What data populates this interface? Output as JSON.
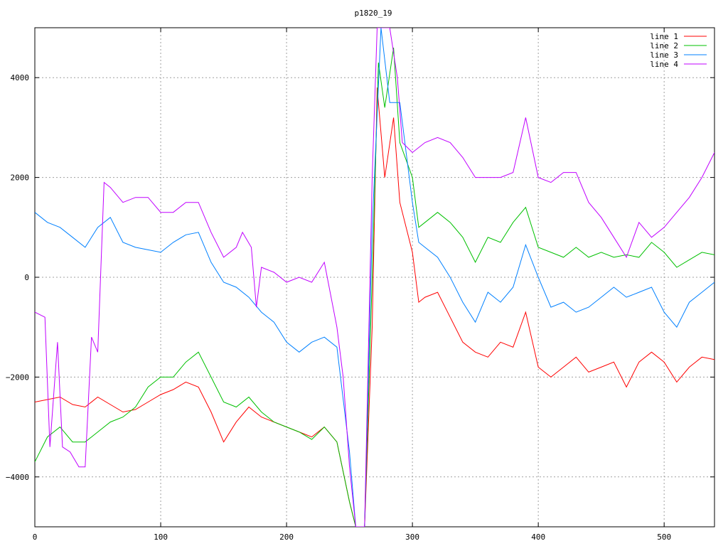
{
  "chart_data": {
    "type": "line",
    "title": "p1820_19",
    "xlabel": "",
    "ylabel": "",
    "xlim": [
      0,
      540
    ],
    "ylim": [
      -5000,
      5000
    ],
    "x_ticks": [
      0,
      100,
      200,
      300,
      400,
      500
    ],
    "y_ticks": [
      -4000,
      -2000,
      0,
      2000,
      4000
    ],
    "x_tick_labels": [
      "0",
      "100",
      "200",
      "300",
      "400",
      "500"
    ],
    "y_tick_labels": [
      "−4000",
      "−2000",
      "0",
      "2000",
      "4000"
    ],
    "grid": true,
    "legend_position": "top-right",
    "series": [
      {
        "name": "line 1",
        "color": "#ff0000",
        "points": [
          [
            0,
            -2500
          ],
          [
            10,
            -2450
          ],
          [
            20,
            -2400
          ],
          [
            30,
            -2550
          ],
          [
            40,
            -2600
          ],
          [
            50,
            -2400
          ],
          [
            60,
            -2550
          ],
          [
            70,
            -2700
          ],
          [
            80,
            -2650
          ],
          [
            90,
            -2500
          ],
          [
            100,
            -2350
          ],
          [
            110,
            -2250
          ],
          [
            120,
            -2100
          ],
          [
            130,
            -2200
          ],
          [
            140,
            -2700
          ],
          [
            150,
            -3300
          ],
          [
            160,
            -2900
          ],
          [
            170,
            -2600
          ],
          [
            180,
            -2800
          ],
          [
            190,
            -2900
          ],
          [
            200,
            -3000
          ],
          [
            210,
            -3100
          ],
          [
            220,
            -3200
          ],
          [
            230,
            -3000
          ],
          [
            240,
            -3300
          ],
          [
            250,
            -4500
          ],
          [
            255,
            -5000
          ],
          [
            262,
            -5000
          ],
          [
            268,
            -1000
          ],
          [
            272,
            3800
          ],
          [
            278,
            2000
          ],
          [
            285,
            3200
          ],
          [
            290,
            1500
          ],
          [
            300,
            500
          ],
          [
            305,
            -500
          ],
          [
            310,
            -400
          ],
          [
            320,
            -300
          ],
          [
            330,
            -800
          ],
          [
            340,
            -1300
          ],
          [
            350,
            -1500
          ],
          [
            360,
            -1600
          ],
          [
            370,
            -1300
          ],
          [
            380,
            -1400
          ],
          [
            390,
            -700
          ],
          [
            400,
            -1800
          ],
          [
            410,
            -2000
          ],
          [
            420,
            -1800
          ],
          [
            430,
            -1600
          ],
          [
            440,
            -1900
          ],
          [
            450,
            -1800
          ],
          [
            460,
            -1700
          ],
          [
            470,
            -2200
          ],
          [
            480,
            -1700
          ],
          [
            490,
            -1500
          ],
          [
            500,
            -1700
          ],
          [
            510,
            -2100
          ],
          [
            520,
            -1800
          ],
          [
            530,
            -1600
          ],
          [
            540,
            -1650
          ]
        ]
      },
      {
        "name": "line 2",
        "color": "#00c000",
        "points": [
          [
            0,
            -3700
          ],
          [
            10,
            -3200
          ],
          [
            20,
            -3000
          ],
          [
            30,
            -3300
          ],
          [
            40,
            -3300
          ],
          [
            50,
            -3100
          ],
          [
            60,
            -2900
          ],
          [
            70,
            -2800
          ],
          [
            80,
            -2600
          ],
          [
            90,
            -2200
          ],
          [
            100,
            -2000
          ],
          [
            110,
            -2000
          ],
          [
            120,
            -1700
          ],
          [
            130,
            -1500
          ],
          [
            140,
            -2000
          ],
          [
            150,
            -2500
          ],
          [
            160,
            -2600
          ],
          [
            170,
            -2400
          ],
          [
            180,
            -2700
          ],
          [
            190,
            -2900
          ],
          [
            200,
            -3000
          ],
          [
            210,
            -3100
          ],
          [
            220,
            -3250
          ],
          [
            230,
            -3000
          ],
          [
            240,
            -3300
          ],
          [
            250,
            -4500
          ],
          [
            255,
            -5000
          ],
          [
            262,
            -5000
          ],
          [
            268,
            0
          ],
          [
            273,
            4300
          ],
          [
            278,
            3400
          ],
          [
            285,
            4600
          ],
          [
            290,
            2700
          ],
          [
            300,
            2000
          ],
          [
            305,
            1000
          ],
          [
            310,
            1100
          ],
          [
            320,
            1300
          ],
          [
            330,
            1100
          ],
          [
            340,
            800
          ],
          [
            350,
            300
          ],
          [
            360,
            800
          ],
          [
            370,
            700
          ],
          [
            380,
            1100
          ],
          [
            390,
            1400
          ],
          [
            400,
            600
          ],
          [
            410,
            500
          ],
          [
            420,
            400
          ],
          [
            430,
            600
          ],
          [
            440,
            400
          ],
          [
            450,
            500
          ],
          [
            460,
            400
          ],
          [
            470,
            450
          ],
          [
            480,
            400
          ],
          [
            490,
            700
          ],
          [
            500,
            500
          ],
          [
            510,
            200
          ],
          [
            520,
            350
          ],
          [
            530,
            500
          ],
          [
            540,
            450
          ]
        ]
      },
      {
        "name": "line 3",
        "color": "#0080ff",
        "points": [
          [
            0,
            1300
          ],
          [
            10,
            1100
          ],
          [
            20,
            1000
          ],
          [
            30,
            800
          ],
          [
            40,
            600
          ],
          [
            50,
            1000
          ],
          [
            60,
            1200
          ],
          [
            70,
            700
          ],
          [
            80,
            600
          ],
          [
            90,
            550
          ],
          [
            100,
            500
          ],
          [
            110,
            700
          ],
          [
            120,
            850
          ],
          [
            130,
            900
          ],
          [
            140,
            300
          ],
          [
            150,
            -100
          ],
          [
            160,
            -200
          ],
          [
            170,
            -400
          ],
          [
            180,
            -700
          ],
          [
            190,
            -900
          ],
          [
            200,
            -1300
          ],
          [
            210,
            -1500
          ],
          [
            220,
            -1300
          ],
          [
            230,
            -1200
          ],
          [
            240,
            -1400
          ],
          [
            250,
            -3500
          ],
          [
            255,
            -5000
          ],
          [
            262,
            -5000
          ],
          [
            268,
            1000
          ],
          [
            275,
            5000
          ],
          [
            282,
            3500
          ],
          [
            290,
            3500
          ],
          [
            300,
            1500
          ],
          [
            305,
            700
          ],
          [
            310,
            600
          ],
          [
            320,
            400
          ],
          [
            330,
            0
          ],
          [
            340,
            -500
          ],
          [
            350,
            -900
          ],
          [
            360,
            -300
          ],
          [
            370,
            -500
          ],
          [
            380,
            -200
          ],
          [
            390,
            650
          ],
          [
            400,
            0
          ],
          [
            410,
            -600
          ],
          [
            420,
            -500
          ],
          [
            430,
            -700
          ],
          [
            440,
            -600
          ],
          [
            450,
            -400
          ],
          [
            460,
            -200
          ],
          [
            470,
            -400
          ],
          [
            480,
            -300
          ],
          [
            490,
            -200
          ],
          [
            500,
            -700
          ],
          [
            510,
            -1000
          ],
          [
            520,
            -500
          ],
          [
            530,
            -300
          ],
          [
            540,
            -100
          ]
        ]
      },
      {
        "name": "line 4",
        "color": "#c000ff",
        "points": [
          [
            0,
            -700
          ],
          [
            8,
            -800
          ],
          [
            12,
            -3400
          ],
          [
            18,
            -1300
          ],
          [
            22,
            -3400
          ],
          [
            28,
            -3500
          ],
          [
            35,
            -3800
          ],
          [
            40,
            -3800
          ],
          [
            45,
            -1200
          ],
          [
            50,
            -1500
          ],
          [
            55,
            1900
          ],
          [
            60,
            1800
          ],
          [
            70,
            1500
          ],
          [
            80,
            1600
          ],
          [
            90,
            1600
          ],
          [
            100,
            1300
          ],
          [
            110,
            1300
          ],
          [
            120,
            1500
          ],
          [
            130,
            1500
          ],
          [
            140,
            900
          ],
          [
            150,
            400
          ],
          [
            160,
            600
          ],
          [
            165,
            900
          ],
          [
            172,
            600
          ],
          [
            176,
            -600
          ],
          [
            180,
            200
          ],
          [
            190,
            100
          ],
          [
            200,
            -100
          ],
          [
            210,
            0
          ],
          [
            220,
            -100
          ],
          [
            230,
            300
          ],
          [
            240,
            -1000
          ],
          [
            245,
            -2000
          ],
          [
            250,
            -3800
          ],
          [
            255,
            -5000
          ],
          [
            262,
            -5000
          ],
          [
            268,
            2000
          ],
          [
            272,
            5000
          ],
          [
            282,
            5000
          ],
          [
            288,
            4000
          ],
          [
            292,
            2700
          ],
          [
            300,
            2500
          ],
          [
            310,
            2700
          ],
          [
            320,
            2800
          ],
          [
            330,
            2700
          ],
          [
            340,
            2400
          ],
          [
            350,
            2000
          ],
          [
            360,
            2000
          ],
          [
            370,
            2000
          ],
          [
            380,
            2100
          ],
          [
            390,
            3200
          ],
          [
            400,
            2000
          ],
          [
            410,
            1900
          ],
          [
            420,
            2100
          ],
          [
            430,
            2100
          ],
          [
            440,
            1500
          ],
          [
            450,
            1200
          ],
          [
            460,
            800
          ],
          [
            470,
            400
          ],
          [
            480,
            1100
          ],
          [
            490,
            800
          ],
          [
            500,
            1000
          ],
          [
            510,
            1300
          ],
          [
            520,
            1600
          ],
          [
            530,
            2000
          ],
          [
            540,
            2500
          ]
        ]
      }
    ]
  }
}
